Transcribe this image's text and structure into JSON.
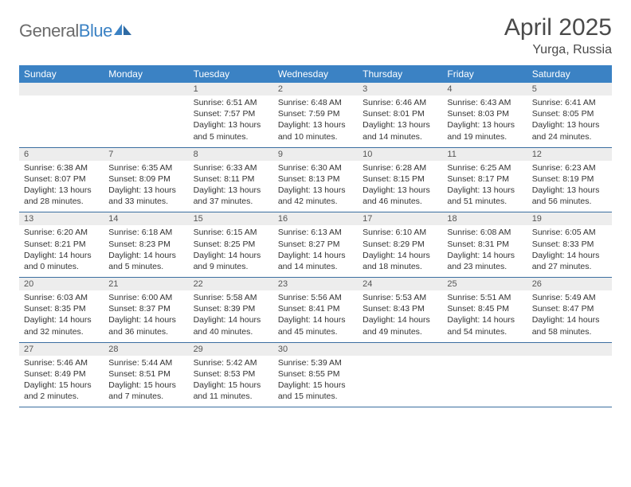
{
  "brand": {
    "part1": "General",
    "part2": "Blue"
  },
  "title": "April 2025",
  "location": "Yurga, Russia",
  "colors": {
    "header_bg": "#3b82c4",
    "header_text": "#ffffff",
    "daynum_bg": "#ededed",
    "row_divider": "#3b6ea0",
    "page_bg": "#ffffff",
    "title_color": "#4a4a4a",
    "logo_gray": "#6b6b6b",
    "logo_blue": "#3b82c4",
    "body_text": "#333333"
  },
  "typography": {
    "title_fontsize": 30,
    "location_fontsize": 16,
    "dayhead_fontsize": 12,
    "daynum_fontsize": 11,
    "cell_fontsize": 10.5
  },
  "day_names": [
    "Sunday",
    "Monday",
    "Tuesday",
    "Wednesday",
    "Thursday",
    "Friday",
    "Saturday"
  ],
  "weeks": [
    [
      {
        "n": "",
        "sr": "",
        "ss": "",
        "dl": ""
      },
      {
        "n": "",
        "sr": "",
        "ss": "",
        "dl": ""
      },
      {
        "n": "1",
        "sr": "Sunrise: 6:51 AM",
        "ss": "Sunset: 7:57 PM",
        "dl": "Daylight: 13 hours and 5 minutes."
      },
      {
        "n": "2",
        "sr": "Sunrise: 6:48 AM",
        "ss": "Sunset: 7:59 PM",
        "dl": "Daylight: 13 hours and 10 minutes."
      },
      {
        "n": "3",
        "sr": "Sunrise: 6:46 AM",
        "ss": "Sunset: 8:01 PM",
        "dl": "Daylight: 13 hours and 14 minutes."
      },
      {
        "n": "4",
        "sr": "Sunrise: 6:43 AM",
        "ss": "Sunset: 8:03 PM",
        "dl": "Daylight: 13 hours and 19 minutes."
      },
      {
        "n": "5",
        "sr": "Sunrise: 6:41 AM",
        "ss": "Sunset: 8:05 PM",
        "dl": "Daylight: 13 hours and 24 minutes."
      }
    ],
    [
      {
        "n": "6",
        "sr": "Sunrise: 6:38 AM",
        "ss": "Sunset: 8:07 PM",
        "dl": "Daylight: 13 hours and 28 minutes."
      },
      {
        "n": "7",
        "sr": "Sunrise: 6:35 AM",
        "ss": "Sunset: 8:09 PM",
        "dl": "Daylight: 13 hours and 33 minutes."
      },
      {
        "n": "8",
        "sr": "Sunrise: 6:33 AM",
        "ss": "Sunset: 8:11 PM",
        "dl": "Daylight: 13 hours and 37 minutes."
      },
      {
        "n": "9",
        "sr": "Sunrise: 6:30 AM",
        "ss": "Sunset: 8:13 PM",
        "dl": "Daylight: 13 hours and 42 minutes."
      },
      {
        "n": "10",
        "sr": "Sunrise: 6:28 AM",
        "ss": "Sunset: 8:15 PM",
        "dl": "Daylight: 13 hours and 46 minutes."
      },
      {
        "n": "11",
        "sr": "Sunrise: 6:25 AM",
        "ss": "Sunset: 8:17 PM",
        "dl": "Daylight: 13 hours and 51 minutes."
      },
      {
        "n": "12",
        "sr": "Sunrise: 6:23 AM",
        "ss": "Sunset: 8:19 PM",
        "dl": "Daylight: 13 hours and 56 minutes."
      }
    ],
    [
      {
        "n": "13",
        "sr": "Sunrise: 6:20 AM",
        "ss": "Sunset: 8:21 PM",
        "dl": "Daylight: 14 hours and 0 minutes."
      },
      {
        "n": "14",
        "sr": "Sunrise: 6:18 AM",
        "ss": "Sunset: 8:23 PM",
        "dl": "Daylight: 14 hours and 5 minutes."
      },
      {
        "n": "15",
        "sr": "Sunrise: 6:15 AM",
        "ss": "Sunset: 8:25 PM",
        "dl": "Daylight: 14 hours and 9 minutes."
      },
      {
        "n": "16",
        "sr": "Sunrise: 6:13 AM",
        "ss": "Sunset: 8:27 PM",
        "dl": "Daylight: 14 hours and 14 minutes."
      },
      {
        "n": "17",
        "sr": "Sunrise: 6:10 AM",
        "ss": "Sunset: 8:29 PM",
        "dl": "Daylight: 14 hours and 18 minutes."
      },
      {
        "n": "18",
        "sr": "Sunrise: 6:08 AM",
        "ss": "Sunset: 8:31 PM",
        "dl": "Daylight: 14 hours and 23 minutes."
      },
      {
        "n": "19",
        "sr": "Sunrise: 6:05 AM",
        "ss": "Sunset: 8:33 PM",
        "dl": "Daylight: 14 hours and 27 minutes."
      }
    ],
    [
      {
        "n": "20",
        "sr": "Sunrise: 6:03 AM",
        "ss": "Sunset: 8:35 PM",
        "dl": "Daylight: 14 hours and 32 minutes."
      },
      {
        "n": "21",
        "sr": "Sunrise: 6:00 AM",
        "ss": "Sunset: 8:37 PM",
        "dl": "Daylight: 14 hours and 36 minutes."
      },
      {
        "n": "22",
        "sr": "Sunrise: 5:58 AM",
        "ss": "Sunset: 8:39 PM",
        "dl": "Daylight: 14 hours and 40 minutes."
      },
      {
        "n": "23",
        "sr": "Sunrise: 5:56 AM",
        "ss": "Sunset: 8:41 PM",
        "dl": "Daylight: 14 hours and 45 minutes."
      },
      {
        "n": "24",
        "sr": "Sunrise: 5:53 AM",
        "ss": "Sunset: 8:43 PM",
        "dl": "Daylight: 14 hours and 49 minutes."
      },
      {
        "n": "25",
        "sr": "Sunrise: 5:51 AM",
        "ss": "Sunset: 8:45 PM",
        "dl": "Daylight: 14 hours and 54 minutes."
      },
      {
        "n": "26",
        "sr": "Sunrise: 5:49 AM",
        "ss": "Sunset: 8:47 PM",
        "dl": "Daylight: 14 hours and 58 minutes."
      }
    ],
    [
      {
        "n": "27",
        "sr": "Sunrise: 5:46 AM",
        "ss": "Sunset: 8:49 PM",
        "dl": "Daylight: 15 hours and 2 minutes."
      },
      {
        "n": "28",
        "sr": "Sunrise: 5:44 AM",
        "ss": "Sunset: 8:51 PM",
        "dl": "Daylight: 15 hours and 7 minutes."
      },
      {
        "n": "29",
        "sr": "Sunrise: 5:42 AM",
        "ss": "Sunset: 8:53 PM",
        "dl": "Daylight: 15 hours and 11 minutes."
      },
      {
        "n": "30",
        "sr": "Sunrise: 5:39 AM",
        "ss": "Sunset: 8:55 PM",
        "dl": "Daylight: 15 hours and 15 minutes."
      },
      {
        "n": "",
        "sr": "",
        "ss": "",
        "dl": ""
      },
      {
        "n": "",
        "sr": "",
        "ss": "",
        "dl": ""
      },
      {
        "n": "",
        "sr": "",
        "ss": "",
        "dl": ""
      }
    ]
  ]
}
